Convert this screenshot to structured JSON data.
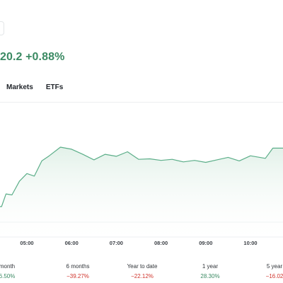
{
  "quote": {
    "change_text": "20.2 +0.88%"
  },
  "tabs": [
    {
      "label": "Markets"
    },
    {
      "label": "ETFs"
    }
  ],
  "colors": {
    "up": "#3b8a63",
    "down": "#d0342c",
    "line": "#5cae89",
    "fill_top": "#e2f1e9",
    "grid": "#eceef0"
  },
  "chart_data": {
    "type": "area",
    "x_ticks": [
      "05:00",
      "06:00",
      "07:00",
      "08:00",
      "09:00",
      "10:00"
    ],
    "x": [
      "04:26",
      "04:32",
      "04:40",
      "04:50",
      "05:00",
      "05:10",
      "05:20",
      "05:30",
      "05:45",
      "06:00",
      "06:15",
      "06:30",
      "06:45",
      "07:00",
      "07:15",
      "07:30",
      "07:45",
      "08:00",
      "08:15",
      "08:30",
      "08:45",
      "09:00",
      "09:15",
      "09:30",
      "09:45",
      "10:00",
      "10:20",
      "10:30"
    ],
    "y": [
      0.05,
      0.3,
      0.28,
      0.55,
      0.7,
      0.65,
      0.95,
      1.05,
      1.22,
      1.18,
      1.08,
      0.97,
      1.08,
      1.04,
      1.13,
      0.98,
      0.99,
      0.96,
      0.98,
      0.93,
      0.96,
      0.92,
      0.97,
      1.02,
      0.95,
      1.05,
      1.0,
      1.2
    ]
  },
  "performance": [
    {
      "label": "month",
      "value": "6.50%",
      "trend": "up"
    },
    {
      "label": "6 months",
      "value": "−39.27%",
      "trend": "down"
    },
    {
      "label": "Year to date",
      "value": "−22.12%",
      "trend": "down"
    },
    {
      "label": "1 year",
      "value": "28.30%",
      "trend": "up"
    },
    {
      "label": "5 year",
      "value": "−16.02",
      "trend": "down"
    }
  ]
}
